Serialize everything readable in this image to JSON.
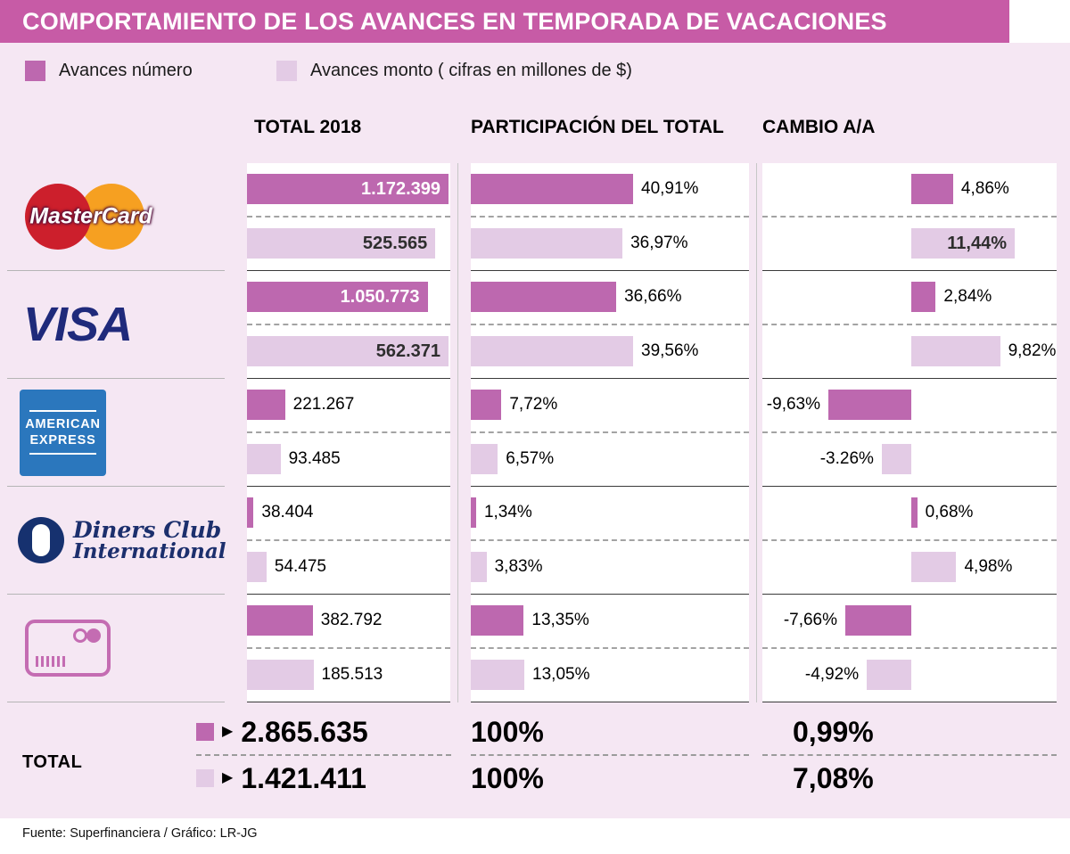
{
  "header": {
    "title": "COMPORTAMIENTO DE LOS AVANCES EN TEMPORADA DE VACACIONES"
  },
  "theme": {
    "banner": "#c75ba6",
    "background": "#f5e7f3",
    "bar_dark": "#bd68af",
    "bar_light": "#e3cbe5"
  },
  "icons": {
    "pointer": "▶"
  },
  "legend": [
    {
      "label": "Avances número"
    },
    {
      "label": "Avances monto ( cifras en millones de $)"
    }
  ],
  "columns": [
    {
      "id": "total",
      "header": "TOTAL 2018"
    },
    {
      "id": "part",
      "header": "PARTICIPACIÓN DEL TOTAL"
    },
    {
      "id": "cambio",
      "header": "CAMBIO A/A"
    }
  ],
  "brands": [
    {
      "name": "MasterCard",
      "logo_lines": [
        "MasterCard"
      ]
    },
    {
      "name": "Visa",
      "logo_lines": [
        "VISA"
      ]
    },
    {
      "name": "American Express",
      "logo_lines": [
        "AMERICAN",
        "EXPRESS"
      ]
    },
    {
      "name": "Diners Club International",
      "logo_lines": [
        "Diners Club",
        "International"
      ]
    },
    {
      "name": "Otras tarjetas",
      "logo_lines": []
    }
  ],
  "total_label": "TOTAL",
  "footer": {
    "source": "Fuente: Superfinanciera / Gráfico: LR-JG"
  },
  "chart_data": {
    "type": "bar",
    "orientation": "horizontal",
    "series": [
      "Avances número",
      "Avances monto"
    ],
    "rows": [
      {
        "brand": "MasterCard",
        "total": {
          "numero": {
            "value": 1172399,
            "label": "1.172.399",
            "inside": true
          },
          "monto": {
            "value": 525565,
            "label": "525.565",
            "inside": true
          }
        },
        "part": {
          "numero": {
            "value": 40.91,
            "label": "40,91%"
          },
          "monto": {
            "value": 36.97,
            "label": "36,97%"
          }
        },
        "cambio": {
          "numero": {
            "value": 4.86,
            "label": "4,86%"
          },
          "monto": {
            "value": 11.44,
            "label": "11,44%",
            "inside": true
          }
        }
      },
      {
        "brand": "Visa",
        "total": {
          "numero": {
            "value": 1050773,
            "label": "1.050.773",
            "inside": true
          },
          "monto": {
            "value": 562371,
            "label": "562.371",
            "inside": true
          }
        },
        "part": {
          "numero": {
            "value": 36.66,
            "label": "36,66%"
          },
          "monto": {
            "value": 39.56,
            "label": "39,56%"
          }
        },
        "cambio": {
          "numero": {
            "value": 2.84,
            "label": "2,84%"
          },
          "monto": {
            "value": 9.82,
            "label": "9,82%"
          }
        }
      },
      {
        "brand": "American Express",
        "total": {
          "numero": {
            "value": 221267,
            "label": "221.267"
          },
          "monto": {
            "value": 93485,
            "label": "93.485"
          }
        },
        "part": {
          "numero": {
            "value": 7.72,
            "label": "7,72%"
          },
          "monto": {
            "value": 6.57,
            "label": "6,57%"
          }
        },
        "cambio": {
          "numero": {
            "value": -9.63,
            "label": "-9,63%"
          },
          "monto": {
            "value": -3.26,
            "label": "-3.26%"
          }
        }
      },
      {
        "brand": "Diners Club International",
        "total": {
          "numero": {
            "value": 38404,
            "label": "38.404"
          },
          "monto": {
            "value": 54475,
            "label": "54.475"
          }
        },
        "part": {
          "numero": {
            "value": 1.34,
            "label": "1,34%"
          },
          "monto": {
            "value": 3.83,
            "label": "3,83%"
          }
        },
        "cambio": {
          "numero": {
            "value": 0.68,
            "label": "0,68%"
          },
          "monto": {
            "value": 4.98,
            "label": "4,98%"
          }
        }
      },
      {
        "brand": "Otras tarjetas",
        "total": {
          "numero": {
            "value": 382792,
            "label": "382.792"
          },
          "monto": {
            "value": 185513,
            "label": "185.513"
          }
        },
        "part": {
          "numero": {
            "value": 13.35,
            "label": "13,35%"
          },
          "monto": {
            "value": 13.05,
            "label": "13,05%"
          }
        },
        "cambio": {
          "numero": {
            "value": -7.66,
            "label": "-7,66%"
          },
          "monto": {
            "value": -4.92,
            "label": "-4,92%"
          }
        }
      }
    ],
    "totals": {
      "numero": {
        "total": "2.865.635",
        "part": "100%",
        "cambio": "0,99%"
      },
      "monto": {
        "total": "1.421.411",
        "part": "100%",
        "cambio": "7,08%"
      }
    },
    "axes": {
      "total": {
        "numero_max": 1172399,
        "monto_max": 562371
      },
      "part": {
        "numero_max": 40.91,
        "monto_max": 39.56
      },
      "cambio": {
        "numero_max": 9.63,
        "monto_max": 11.44,
        "baseline_frac": 0.506
      }
    }
  }
}
